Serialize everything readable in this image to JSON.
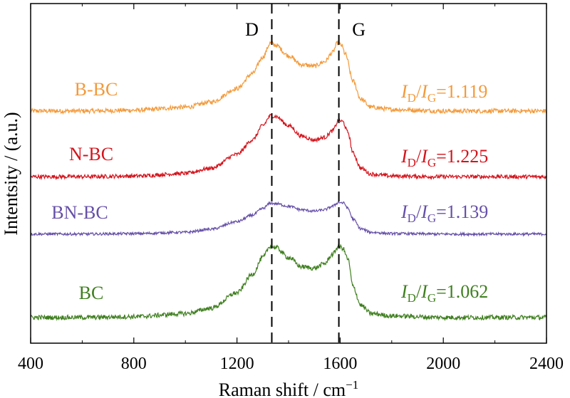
{
  "chart_data": {
    "type": "line",
    "xlabel": "Raman shift / cm",
    "xlabel_sup": "−1",
    "ylabel": "Intentsity / (a.u.)",
    "xlim": [
      400,
      2400
    ],
    "x_ticks": [
      "400",
      "800",
      "1200",
      "1600",
      "2000",
      "2400"
    ],
    "x_tick_values": [
      400,
      800,
      1200,
      1600,
      2000,
      2400
    ],
    "y_ticks_shown": false,
    "stacked_offsets": true,
    "reference_lines": [
      {
        "label": "D",
        "x": 1335
      },
      {
        "label": "G",
        "x": 1595
      }
    ],
    "series": [
      {
        "name": "B-BC",
        "color": "#f39a3b",
        "ratio_label": {
          "i_d": "I",
          "sub_d": "D",
          "slash": "/",
          "i_g": "I",
          "sub_g": "G",
          "value": "=1.119"
        },
        "points": [
          [
            400,
            0.02
          ],
          [
            600,
            0.02
          ],
          [
            800,
            0.03
          ],
          [
            1000,
            0.07
          ],
          [
            1100,
            0.14
          ],
          [
            1200,
            0.32
          ],
          [
            1260,
            0.52
          ],
          [
            1300,
            0.74
          ],
          [
            1330,
            0.93
          ],
          [
            1350,
            0.9
          ],
          [
            1400,
            0.76
          ],
          [
            1450,
            0.64
          ],
          [
            1500,
            0.62
          ],
          [
            1540,
            0.68
          ],
          [
            1570,
            0.8
          ],
          [
            1590,
            0.93
          ],
          [
            1605,
            0.9
          ],
          [
            1620,
            0.78
          ],
          [
            1650,
            0.42
          ],
          [
            1680,
            0.18
          ],
          [
            1720,
            0.07
          ],
          [
            1800,
            0.04
          ],
          [
            2000,
            0.02
          ],
          [
            2200,
            0.02
          ],
          [
            2400,
            0.02
          ]
        ]
      },
      {
        "name": "N-BC",
        "color": "#d4141c",
        "ratio_label": {
          "i_d": "I",
          "sub_d": "D",
          "slash": "/",
          "i_g": "I",
          "sub_g": "G",
          "value": "=1.225"
        },
        "points": [
          [
            400,
            0.02
          ],
          [
            600,
            0.02
          ],
          [
            800,
            0.03
          ],
          [
            1000,
            0.07
          ],
          [
            1100,
            0.15
          ],
          [
            1200,
            0.36
          ],
          [
            1260,
            0.58
          ],
          [
            1300,
            0.8
          ],
          [
            1330,
            0.95
          ],
          [
            1350,
            0.94
          ],
          [
            1400,
            0.8
          ],
          [
            1450,
            0.64
          ],
          [
            1500,
            0.58
          ],
          [
            1540,
            0.62
          ],
          [
            1570,
            0.72
          ],
          [
            1595,
            0.88
          ],
          [
            1610,
            0.86
          ],
          [
            1630,
            0.7
          ],
          [
            1650,
            0.38
          ],
          [
            1680,
            0.15
          ],
          [
            1720,
            0.06
          ],
          [
            1800,
            0.03
          ],
          [
            2000,
            0.02
          ],
          [
            2200,
            0.02
          ],
          [
            2400,
            0.02
          ]
        ]
      },
      {
        "name": "BN-BC",
        "color": "#6650a8",
        "ratio_label": {
          "i_d": "I",
          "sub_d": "D",
          "slash": "/",
          "i_g": "I",
          "sub_g": "G",
          "value": "=1.139"
        },
        "points": [
          [
            400,
            0.02
          ],
          [
            600,
            0.02
          ],
          [
            800,
            0.03
          ],
          [
            1000,
            0.06
          ],
          [
            1100,
            0.13
          ],
          [
            1200,
            0.3
          ],
          [
            1260,
            0.45
          ],
          [
            1300,
            0.6
          ],
          [
            1330,
            0.72
          ],
          [
            1350,
            0.71
          ],
          [
            1400,
            0.65
          ],
          [
            1450,
            0.57
          ],
          [
            1500,
            0.54
          ],
          [
            1540,
            0.57
          ],
          [
            1570,
            0.65
          ],
          [
            1595,
            0.74
          ],
          [
            1615,
            0.72
          ],
          [
            1630,
            0.6
          ],
          [
            1650,
            0.36
          ],
          [
            1680,
            0.14
          ],
          [
            1720,
            0.06
          ],
          [
            1800,
            0.03
          ],
          [
            2000,
            0.02
          ],
          [
            2200,
            0.02
          ],
          [
            2400,
            0.02
          ]
        ]
      },
      {
        "name": "BC",
        "color": "#3f7f1f",
        "ratio_label": {
          "i_d": "I",
          "sub_d": "D",
          "slash": "/",
          "i_g": "I",
          "sub_g": "G",
          "value": "=1.062"
        },
        "points": [
          [
            400,
            0.02
          ],
          [
            600,
            0.02
          ],
          [
            800,
            0.03
          ],
          [
            1000,
            0.07
          ],
          [
            1100,
            0.14
          ],
          [
            1200,
            0.34
          ],
          [
            1260,
            0.58
          ],
          [
            1300,
            0.8
          ],
          [
            1330,
            0.95
          ],
          [
            1350,
            0.93
          ],
          [
            1400,
            0.8
          ],
          [
            1450,
            0.68
          ],
          [
            1500,
            0.66
          ],
          [
            1540,
            0.72
          ],
          [
            1570,
            0.84
          ],
          [
            1595,
            0.95
          ],
          [
            1610,
            0.92
          ],
          [
            1630,
            0.78
          ],
          [
            1650,
            0.42
          ],
          [
            1680,
            0.18
          ],
          [
            1720,
            0.07
          ],
          [
            1800,
            0.04
          ],
          [
            2000,
            0.02
          ],
          [
            2200,
            0.02
          ],
          [
            2400,
            0.02
          ]
        ]
      }
    ]
  }
}
